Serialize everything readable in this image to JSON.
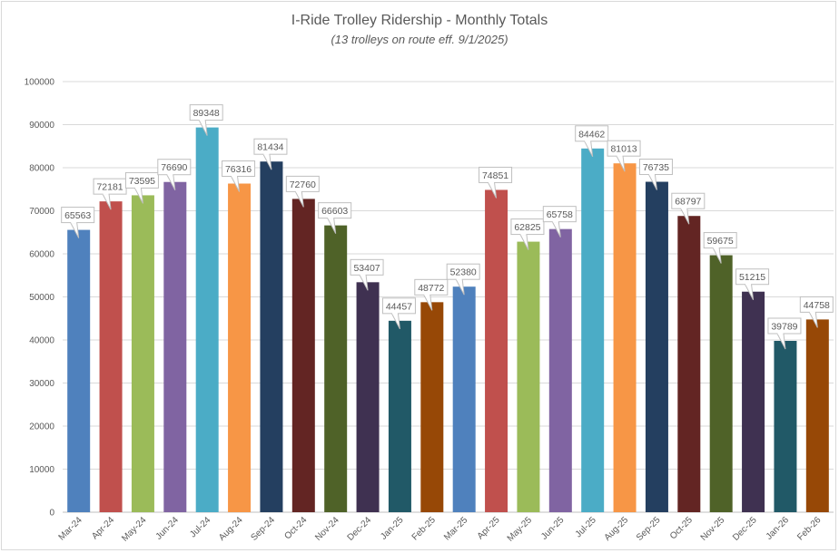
{
  "chart_data": {
    "type": "bar",
    "title": "I-Ride Trolley Ridership - Monthly Totals",
    "subtitle": "(13 trolleys on route eff. 9/1/2025)",
    "categories": [
      "Mar-24",
      "Apr-24",
      "May-24",
      "Jun-24",
      "Jul-24",
      "Aug-24",
      "Sep-24",
      "Oct-24",
      "Nov-24",
      "Dec-24",
      "Jan-25",
      "Feb-25",
      "Mar-25",
      "Apr-25",
      "May-25",
      "Jun-25",
      "Jul-25",
      "Aug-25",
      "Sep-25",
      "Oct-25",
      "Nov-25",
      "Dec-25",
      "Jan-26",
      "Feb-26"
    ],
    "values": [
      65563,
      72181,
      73595,
      76690,
      89348,
      76316,
      81434,
      72760,
      66603,
      53407,
      44457,
      48772,
      52380,
      74851,
      62825,
      65758,
      84462,
      81013,
      76735,
      68797,
      59675,
      51215,
      39789,
      44758
    ],
    "ylim": [
      0,
      100000
    ],
    "yticks": [
      0,
      10000,
      20000,
      30000,
      40000,
      50000,
      60000,
      70000,
      80000,
      90000,
      100000
    ],
    "xlabel": "",
    "ylabel": "",
    "grid": true,
    "legend": "none",
    "data_labels": true,
    "colors": [
      "#4F81BD",
      "#C0504D",
      "#9BBB59",
      "#8064A2",
      "#4BACC6",
      "#F79646",
      "#243F60",
      "#632523",
      "#4F6228",
      "#3F3151",
      "#215967",
      "#974806"
    ]
  }
}
